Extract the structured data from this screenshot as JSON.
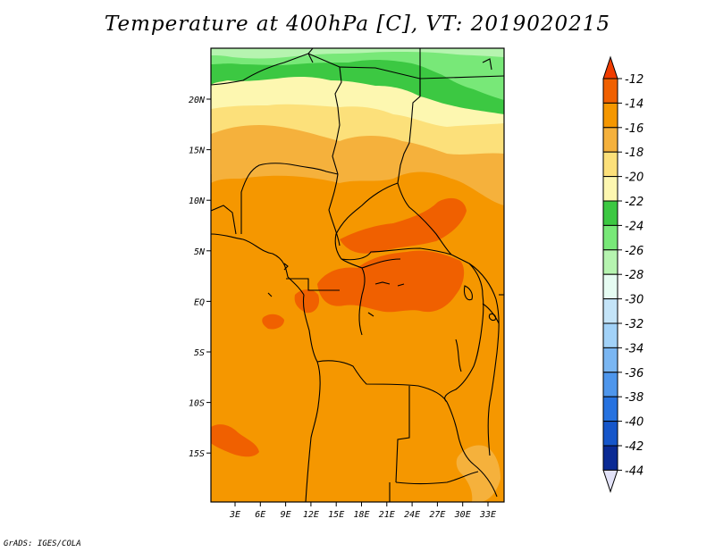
{
  "title": "Temperature at 400hPa [C], VT: 2019020215",
  "footer": "GrADS: IGES/COLA",
  "map": {
    "lon_labels": [
      "3E",
      "6E",
      "9E",
      "12E",
      "15E",
      "18E",
      "21E",
      "24E",
      "27E",
      "30E",
      "33E"
    ],
    "lat_labels": [
      "20N",
      "15N",
      "10N",
      "5N",
      "EQ",
      "5S",
      "10S",
      "15S"
    ]
  },
  "colorbar": {
    "labels": [
      "-12",
      "-14",
      "-16",
      "-18",
      "-20",
      "-22",
      "-24",
      "-26",
      "-28",
      "-30",
      "-32",
      "-34",
      "-36",
      "-38",
      "-40",
      "-42",
      "-44"
    ],
    "colors": [
      "#f06000",
      "#f59700",
      "#f5b13c",
      "#fce07a",
      "#fdf7b0",
      "#3cc842",
      "#78e878",
      "#b6f4b0",
      "#e6fcf2",
      "#c4e4f8",
      "#a2d2f8",
      "#7ab6f2",
      "#4e96ec",
      "#2672e0",
      "#1656ca",
      "#0a2a94"
    ],
    "over_color": "#f03c00",
    "under_color": "#e2e2f8"
  }
}
